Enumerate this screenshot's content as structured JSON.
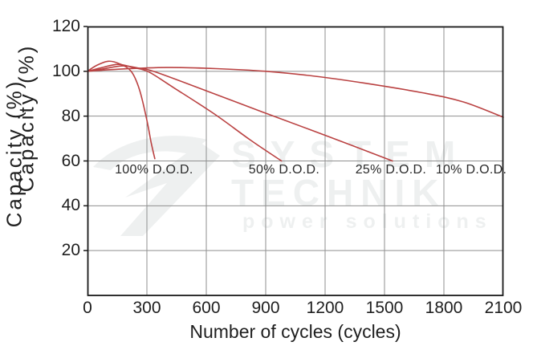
{
  "axes": {
    "y_label": "Capacity (%)",
    "x_label": "Number of cycles (cycles)",
    "y_ticks": [
      120,
      100,
      80,
      60,
      40,
      20
    ],
    "x_ticks": [
      0,
      300,
      600,
      900,
      1200,
      1500,
      1800,
      2100
    ]
  },
  "watermark": {
    "line1": "SYSTEM",
    "line2": "TECHNIK",
    "line3": "power solutions"
  },
  "colors": {
    "curve": "#ba4242",
    "grid": "#8f8f8f",
    "frame": "#1a1a1a",
    "watermark": "#eef0f0"
  },
  "chart_data": {
    "type": "line",
    "title": "",
    "xlabel": "Number of cycles (cycles)",
    "ylabel": "Capacity (%)",
    "xlim": [
      0,
      2100
    ],
    "ylim": [
      0,
      120
    ],
    "x_ticks": [
      0,
      300,
      600,
      900,
      1200,
      1500,
      1800,
      2100
    ],
    "y_ticks": [
      0,
      20,
      40,
      60,
      80,
      100,
      120
    ],
    "grid": true,
    "legend_position": "inline-labels",
    "series": [
      {
        "name": "100% D.O.D.",
        "points": [
          [
            0,
            100
          ],
          [
            45,
            102.6
          ],
          [
            105,
            104.5
          ],
          [
            160,
            103.4
          ],
          [
            220,
            100
          ],
          [
            262,
            92
          ],
          [
            298,
            79
          ],
          [
            322,
            68
          ],
          [
            340,
            61
          ]
        ]
      },
      {
        "name": "50% D.O.D.",
        "points": [
          [
            0,
            100
          ],
          [
            70,
            101.6
          ],
          [
            155,
            103.1
          ],
          [
            235,
            101.6
          ],
          [
            310,
            99.7
          ],
          [
            430,
            93
          ],
          [
            640,
            81
          ],
          [
            820,
            69.5
          ],
          [
            980,
            60
          ]
        ]
      },
      {
        "name": "25% D.O.D.",
        "points": [
          [
            0,
            100
          ],
          [
            80,
            101.1
          ],
          [
            180,
            102.4
          ],
          [
            265,
            101.3
          ],
          [
            340,
            99.8
          ],
          [
            600,
            91.3
          ],
          [
            900,
            81.3
          ],
          [
            1220,
            70.8
          ],
          [
            1540,
            60
          ]
        ]
      },
      {
        "name": "10% D.O.D.",
        "points": [
          [
            0,
            100
          ],
          [
            150,
            100.9
          ],
          [
            400,
            101.7
          ],
          [
            650,
            101.2
          ],
          [
            900,
            100
          ],
          [
            1150,
            97.8
          ],
          [
            1400,
            94.7
          ],
          [
            1700,
            90.3
          ],
          [
            1900,
            86.3
          ],
          [
            2100,
            79.5
          ]
        ]
      }
    ],
    "annotations": [
      {
        "text": "100% D.O.D.",
        "x": 336,
        "y": 55.9
      },
      {
        "text": "50% D.O.D.",
        "x": 993,
        "y": 55.9
      },
      {
        "text": "25% D.O.D.",
        "x": 1532,
        "y": 55.9
      },
      {
        "text": "10% D.O.D.",
        "x": 1938,
        "y": 55.9
      }
    ]
  }
}
